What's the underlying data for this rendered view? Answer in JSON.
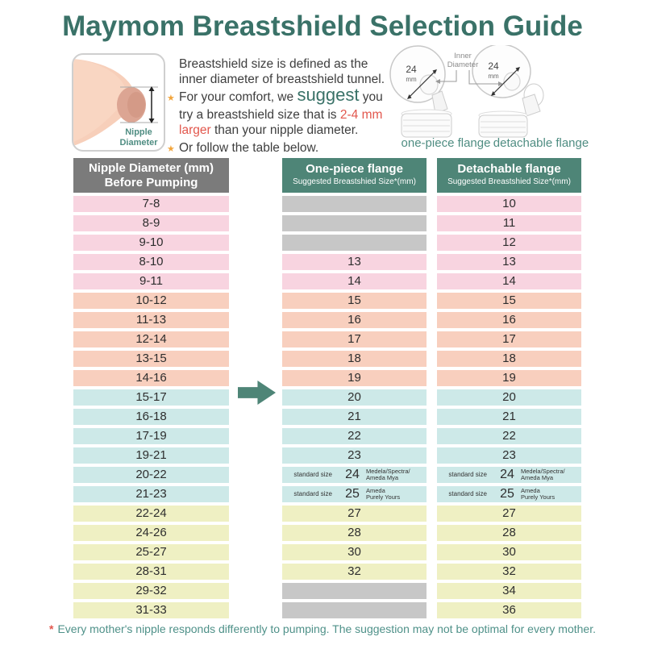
{
  "title": "Maymom Breastshield Selection Guide",
  "info": {
    "breast_diagram": {
      "label_line1": "Nipple",
      "label_line2": "Diameter"
    },
    "intro_line1": "Breastshield size is defined as the",
    "intro_line2": "inner diameter of breastshield tunnel.",
    "bullet_star": "★",
    "bullet1": {
      "line1_a": "For your comfort, we ",
      "line1_b": "suggest",
      "line1_c": " you",
      "line2_a": "try a breastshield size that is ",
      "line2_b": "2-4 mm",
      "line3_a": "larger",
      "line3_b": " than your nipple diameter."
    },
    "bullet2": "Or follow the table below.",
    "flanges": {
      "one_piece": {
        "size": "24",
        "unit": "mm",
        "caption": "one-piece flange"
      },
      "detachable": {
        "size": "24",
        "unit": "mm",
        "caption": "detachable flange"
      },
      "inner_diameter_line1": "Inner",
      "inner_diameter_line2": "Diameter"
    }
  },
  "table": {
    "headers": {
      "nipple_line1": "Nipple Diameter (mm)",
      "nipple_line2": "Before Pumping",
      "one_piece_line1": "One-piece flange",
      "one_piece_line2": "Suggested Breastshied Size*(mm)",
      "detachable_line1": "Detachable flange",
      "detachable_line2": "Suggested Breastshied Size*(mm)"
    },
    "rows": [
      {
        "nipple": "7-8",
        "one": null,
        "det": "10",
        "color": "pink"
      },
      {
        "nipple": "8-9",
        "one": null,
        "det": "11",
        "color": "pink"
      },
      {
        "nipple": "9-10",
        "one": null,
        "det": "12",
        "color": "pink"
      },
      {
        "nipple": "8-10",
        "one": "13",
        "det": "13",
        "color": "pink"
      },
      {
        "nipple": "9-11",
        "one": "14",
        "det": "14",
        "color": "pink"
      },
      {
        "nipple": "10-12",
        "one": "15",
        "det": "15",
        "color": "peach"
      },
      {
        "nipple": "11-13",
        "one": "16",
        "det": "16",
        "color": "peach"
      },
      {
        "nipple": "12-14",
        "one": "17",
        "det": "17",
        "color": "peach"
      },
      {
        "nipple": "13-15",
        "one": "18",
        "det": "18",
        "color": "peach"
      },
      {
        "nipple": "14-16",
        "one": "19",
        "det": "19",
        "color": "peach"
      },
      {
        "nipple": "15-17",
        "one": "20",
        "det": "20",
        "color": "blue"
      },
      {
        "nipple": "16-18",
        "one": "21",
        "det": "21",
        "color": "blue"
      },
      {
        "nipple": "17-19",
        "one": "22",
        "det": "22",
        "color": "blue"
      },
      {
        "nipple": "19-21",
        "one": "23",
        "det": "23",
        "color": "blue"
      },
      {
        "nipple": "20-22",
        "one": {
          "pre": "standard size",
          "val": "24",
          "suf1": "Medela/Spectra/",
          "suf2": "Ameda Mya"
        },
        "det": {
          "pre": "standard size",
          "val": "24",
          "suf1": "Medela/Spectra/",
          "suf2": "Ameda Mya"
        },
        "color": "blue"
      },
      {
        "nipple": "21-23",
        "one": {
          "pre": "standard size",
          "val": "25",
          "suf1": "Ameda",
          "suf2": "Purely Yours"
        },
        "det": {
          "pre": "standard size",
          "val": "25",
          "suf1": "Ameda",
          "suf2": "Purely Yours"
        },
        "color": "blue"
      },
      {
        "nipple": "22-24",
        "one": "27",
        "det": "27",
        "color": "yellow"
      },
      {
        "nipple": "24-26",
        "one": "28",
        "det": "28",
        "color": "yellow"
      },
      {
        "nipple": "25-27",
        "one": "30",
        "det": "30",
        "color": "yellow"
      },
      {
        "nipple": "28-31",
        "one": "32",
        "det": "32",
        "color": "yellow"
      },
      {
        "nipple": "29-32",
        "one": null,
        "det": "34",
        "color": "yellow"
      },
      {
        "nipple": "31-33",
        "one": null,
        "det": "36",
        "color": "yellow"
      }
    ]
  },
  "footer": {
    "asterisk": "*",
    "text": "Every mother's nipple responds differently to pumping. The suggestion may not be optimal for every mother."
  },
  "colors": {
    "title_teal": "#3a7268",
    "caption_teal": "#4f8d82",
    "header_teal": "#4e8577",
    "header_gray": "#7b7b7b",
    "row_pink": "#f8d4e0",
    "row_peach": "#f8cfbe",
    "row_blue": "#cde9e8",
    "row_yellow": "#eff0c3",
    "cell_gray": "#c7c7c7",
    "accent_red": "#e2574d",
    "star_orange": "#f2a53c",
    "footer_teal": "#4f9189",
    "text_dark": "#3e3e3e"
  }
}
